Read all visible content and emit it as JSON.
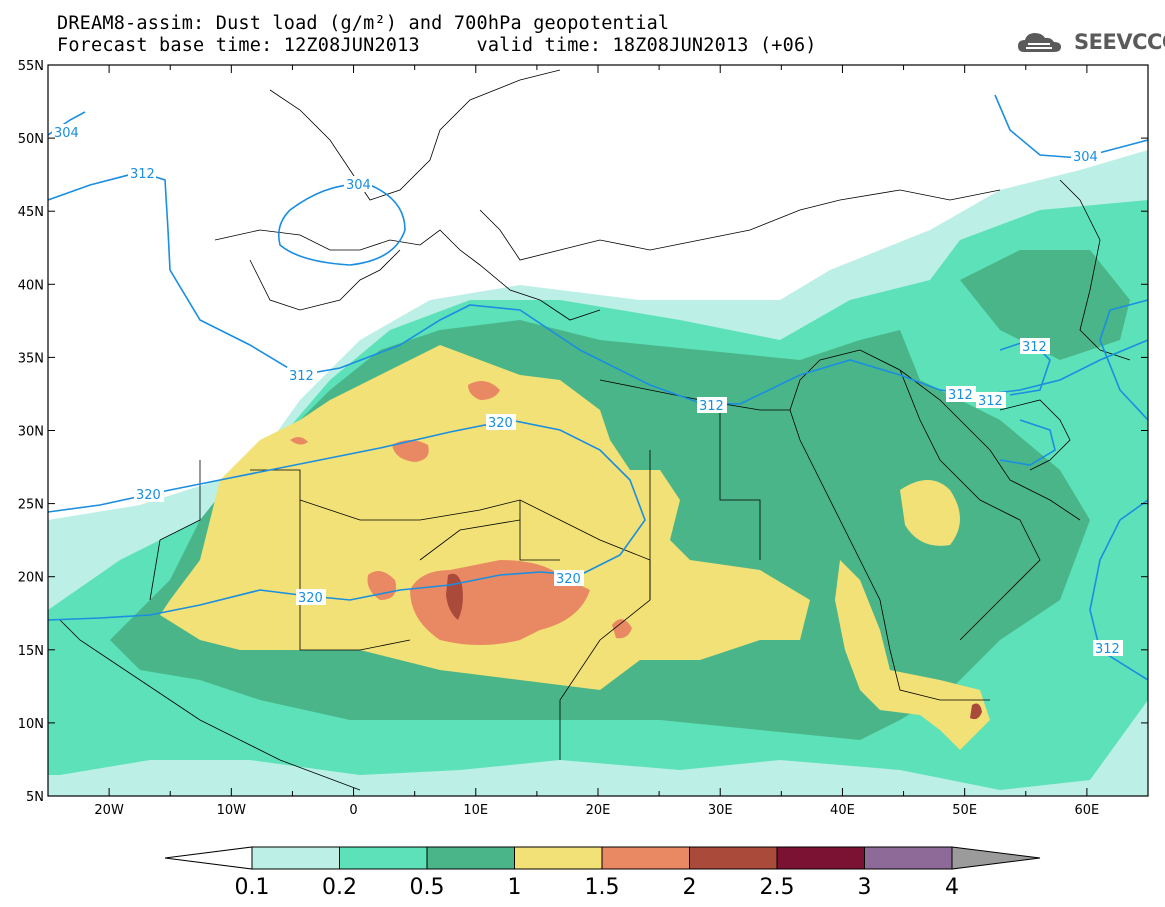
{
  "title": {
    "line1": "DREAM8-assim: Dust load (g/m²) and 700hPa geopotential",
    "line2": "Forecast base time: 12Z08JUN2013     valid time: 18Z08JUN2013 (+06)"
  },
  "logo": {
    "text": "SEEVCCC",
    "icon": "cloud-icon"
  },
  "axes": {
    "lat_labels": [
      "55N",
      "50N",
      "45N",
      "40N",
      "35N",
      "30N",
      "25N",
      "20N",
      "15N",
      "10N",
      "5N"
    ],
    "lon_labels": [
      "20W",
      "10W",
      "0",
      "10E",
      "20E",
      "30E",
      "40E",
      "50E",
      "60E"
    ],
    "lat_range": [
      5,
      55
    ],
    "lon_range": [
      -25,
      65
    ]
  },
  "contour_labels": [
    "304",
    "312",
    "304",
    "312",
    "320",
    "320",
    "320",
    "320",
    "312",
    "312",
    "312",
    "312",
    "312",
    "304"
  ],
  "colorbar": {
    "labels": [
      "0.1",
      "0.2",
      "0.5",
      "1",
      "1.5",
      "2",
      "2.5",
      "3",
      "4"
    ],
    "colors": [
      "#ffffff",
      "#bcefe6",
      "#5ce1b9",
      "#4ab589",
      "#f2e176",
      "#e98964",
      "#a94a3a",
      "#7c1233",
      "#8e6a99",
      "#9b9b9b"
    ]
  }
}
